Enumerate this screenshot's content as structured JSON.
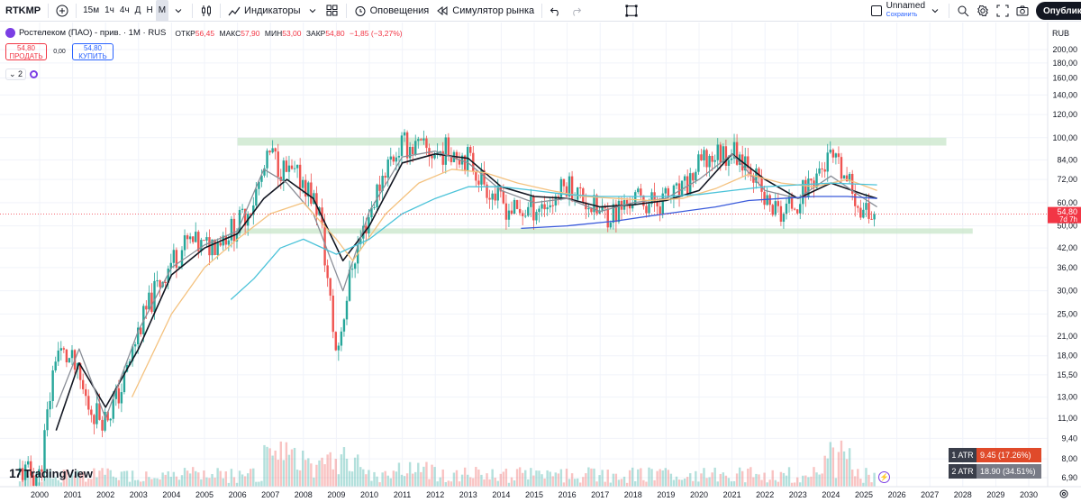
{
  "toolbar": {
    "ticker": "RTKMP",
    "timeframes": [
      "15м",
      "1ч",
      "4ч",
      "Д",
      "Н",
      "М"
    ],
    "active_timeframe": "М",
    "indicators_label": "Индикаторы",
    "alerts_label": "Оповещения",
    "replay_label": "Симулятор рынка",
    "layout_name": "Unnamed",
    "save_label": "Сохранить",
    "publish_label": "Опублико"
  },
  "legend": {
    "title": "Ростелеком (ПАО) - прив. · 1М · RUS",
    "open_label": "ОТКР",
    "open": "56,45",
    "high_label": "МАКС",
    "high": "57,90",
    "low_label": "МИН",
    "low": "53,00",
    "close_label": "ЗАКР",
    "close": "54,80",
    "change": "−1,85 (−3,27%)"
  },
  "trade": {
    "sell_price": "54,80",
    "sell_label": "ПРОДАТЬ",
    "spread": "0,00",
    "buy_price": "54,80",
    "buy_label": "КУПИТЬ"
  },
  "indicators_count": "2",
  "currency": "RUB",
  "price_badge": {
    "price": "54,80",
    "countdown": "7d 7h"
  },
  "atr": [
    {
      "label": "1 ATR",
      "value": "9.45 (17.26%)"
    },
    {
      "label": "2 ATR",
      "value": "18.90 (34.51%)"
    }
  ],
  "branding": "TradingView",
  "colors": {
    "up": "#26a69a",
    "down": "#ef5350",
    "ma_black": "#131722",
    "ma_grey": "#8a8e97",
    "ma_orange": "#f4c27f",
    "ma_cyan": "#4cc3d9",
    "ma_blue": "#3b5bdb",
    "zone": "#c8e6c9",
    "atr1": "#e04a2a",
    "atr2": "#787b86"
  },
  "chart_data": {
    "type": "candlestick",
    "symbol": "RTKMP",
    "interval": "1M",
    "y_scale": "log",
    "price_ticks": [
      "200,00",
      "180,00",
      "160,00",
      "140,00",
      "120,00",
      "100,00",
      "84,00",
      "72,00",
      "60,00",
      "50,00",
      "42,00",
      "36,00",
      "30,00",
      "25,00",
      "21,00",
      "18,00",
      "15,50",
      "13,00",
      "11,00",
      "9,40",
      "8,00",
      "6,90"
    ],
    "x_ticks": [
      "2000",
      "2001",
      "2002",
      "2003",
      "2004",
      "2005",
      "2006",
      "2007",
      "2008",
      "2009",
      "2010",
      "2011",
      "2012",
      "2013",
      "2014",
      "2015",
      "2016",
      "2017",
      "2018",
      "2019",
      "2020",
      "2021",
      "2022",
      "2023",
      "2024",
      "2025",
      "2026",
      "2027",
      "2028",
      "2029",
      "2030"
    ],
    "yearly_close": [
      [
        1999.5,
        7.2
      ],
      [
        2000.0,
        7.0
      ],
      [
        2000.5,
        19
      ],
      [
        2001.0,
        17
      ],
      [
        2001.5,
        12
      ],
      [
        2002.0,
        11
      ],
      [
        2002.5,
        14
      ],
      [
        2003.0,
        22
      ],
      [
        2003.5,
        30
      ],
      [
        2004.0,
        38
      ],
      [
        2004.5,
        44
      ],
      [
        2005.0,
        42
      ],
      [
        2005.5,
        46
      ],
      [
        2006.0,
        50
      ],
      [
        2006.5,
        62
      ],
      [
        2007.0,
        88
      ],
      [
        2007.5,
        75
      ],
      [
        2008.0,
        72
      ],
      [
        2008.5,
        55
      ],
      [
        2009.0,
        18
      ],
      [
        2009.5,
        38
      ],
      [
        2010.0,
        55
      ],
      [
        2010.5,
        80
      ],
      [
        2011.0,
        95
      ],
      [
        2011.5,
        92
      ],
      [
        2012.0,
        88
      ],
      [
        2012.5,
        92
      ],
      [
        2013.0,
        85
      ],
      [
        2013.5,
        70
      ],
      [
        2014.0,
        60
      ],
      [
        2014.5,
        55
      ],
      [
        2015.0,
        58
      ],
      [
        2015.5,
        60
      ],
      [
        2016.0,
        70
      ],
      [
        2016.5,
        62
      ],
      [
        2017.0,
        55
      ],
      [
        2017.5,
        56
      ],
      [
        2018.0,
        62
      ],
      [
        2018.5,
        60
      ],
      [
        2019.0,
        62
      ],
      [
        2019.5,
        65
      ],
      [
        2020.0,
        80
      ],
      [
        2020.5,
        88
      ],
      [
        2021.0,
        90
      ],
      [
        2021.5,
        85
      ],
      [
        2022.0,
        60
      ],
      [
        2022.5,
        55
      ],
      [
        2023.0,
        62
      ],
      [
        2023.5,
        74
      ],
      [
        2024.0,
        85
      ],
      [
        2024.5,
        70
      ],
      [
        2025.0,
        56
      ],
      [
        2025.3,
        54.8
      ]
    ],
    "moving_averages": [
      {
        "color": "black",
        "values": [
          [
            2000.5,
            10
          ],
          [
            2001.2,
            17
          ],
          [
            2002.0,
            12
          ],
          [
            2003.0,
            19
          ],
          [
            2004.0,
            34
          ],
          [
            2005.0,
            42
          ],
          [
            2006.0,
            47
          ],
          [
            2006.8,
            62
          ],
          [
            2007.5,
            72
          ],
          [
            2008.3,
            62
          ],
          [
            2009.2,
            38
          ],
          [
            2010.0,
            50
          ],
          [
            2011.0,
            82
          ],
          [
            2012.0,
            88
          ],
          [
            2013.0,
            85
          ],
          [
            2014.0,
            68
          ],
          [
            2015.0,
            63
          ],
          [
            2016.0,
            62
          ],
          [
            2017.0,
            58
          ],
          [
            2018.0,
            59
          ],
          [
            2019.0,
            61
          ],
          [
            2020.0,
            66
          ],
          [
            2021.0,
            88
          ],
          [
            2022.0,
            72
          ],
          [
            2023.0,
            62
          ],
          [
            2024.0,
            70
          ],
          [
            2025.0,
            64
          ],
          [
            2025.4,
            62
          ]
        ]
      },
      {
        "color": "grey",
        "values": [
          [
            2000.5,
            12
          ],
          [
            2001.2,
            19
          ],
          [
            2002.0,
            11
          ],
          [
            2003.0,
            22
          ],
          [
            2004.0,
            36
          ],
          [
            2005.0,
            43
          ],
          [
            2006.0,
            48
          ],
          [
            2006.8,
            78
          ],
          [
            2007.5,
            70
          ],
          [
            2008.3,
            55
          ],
          [
            2009.2,
            30
          ],
          [
            2010.0,
            56
          ],
          [
            2011.0,
            86
          ],
          [
            2012.0,
            90
          ],
          [
            2013.0,
            82
          ],
          [
            2014.0,
            66
          ],
          [
            2015.0,
            60
          ],
          [
            2016.0,
            62
          ],
          [
            2017.0,
            56
          ],
          [
            2018.0,
            60
          ],
          [
            2019.0,
            62
          ],
          [
            2020.0,
            72
          ],
          [
            2021.0,
            88
          ],
          [
            2022.0,
            66
          ],
          [
            2023.0,
            62
          ],
          [
            2024.0,
            74
          ],
          [
            2025.0,
            62
          ],
          [
            2025.4,
            58
          ]
        ]
      },
      {
        "color": "orange",
        "values": [
          [
            2002.8,
            13
          ],
          [
            2004.0,
            25
          ],
          [
            2005.0,
            36
          ],
          [
            2006.0,
            45
          ],
          [
            2007.0,
            55
          ],
          [
            2008.0,
            60
          ],
          [
            2009.0,
            45
          ],
          [
            2009.5,
            38
          ],
          [
            2010.5,
            55
          ],
          [
            2011.5,
            70
          ],
          [
            2012.5,
            78
          ],
          [
            2013.5,
            76
          ],
          [
            2014.5,
            70
          ],
          [
            2015.5,
            66
          ],
          [
            2016.5,
            63
          ],
          [
            2017.5,
            62
          ],
          [
            2018.5,
            61
          ],
          [
            2019.5,
            62
          ],
          [
            2020.5,
            67
          ],
          [
            2021.5,
            75
          ],
          [
            2022.5,
            70
          ],
          [
            2023.5,
            68
          ],
          [
            2024.5,
            72
          ],
          [
            2025.4,
            66
          ]
        ]
      },
      {
        "color": "cyan",
        "values": [
          [
            2005.8,
            28
          ],
          [
            2006.5,
            33
          ],
          [
            2007.3,
            42
          ],
          [
            2008.0,
            45
          ],
          [
            2009.0,
            40
          ],
          [
            2010.0,
            45
          ],
          [
            2011.0,
            55
          ],
          [
            2012.0,
            62
          ],
          [
            2013.0,
            68
          ],
          [
            2014.0,
            68
          ],
          [
            2015.0,
            66
          ],
          [
            2016.0,
            64
          ],
          [
            2017.0,
            63
          ],
          [
            2018.0,
            63
          ],
          [
            2019.0,
            63
          ],
          [
            2020.0,
            64
          ],
          [
            2021.0,
            66
          ],
          [
            2022.0,
            68
          ],
          [
            2023.0,
            69
          ],
          [
            2024.0,
            70
          ],
          [
            2025.4,
            69
          ]
        ]
      },
      {
        "color": "blue",
        "values": [
          [
            2014.6,
            49
          ],
          [
            2016.0,
            50
          ],
          [
            2017.5,
            52
          ],
          [
            2018.5,
            54
          ],
          [
            2019.5,
            56
          ],
          [
            2020.5,
            58
          ],
          [
            2021.5,
            61
          ],
          [
            2022.5,
            62
          ],
          [
            2023.5,
            63
          ],
          [
            2024.5,
            63
          ],
          [
            2025.4,
            62
          ]
        ]
      }
    ],
    "zones": [
      {
        "x": [
          2006.0,
          2027.5
        ],
        "y": [
          94,
          100
        ]
      },
      {
        "x": [
          2006.0,
          2028.3
        ],
        "y": [
          47,
          49
        ]
      }
    ],
    "last_price": 54.8
  }
}
